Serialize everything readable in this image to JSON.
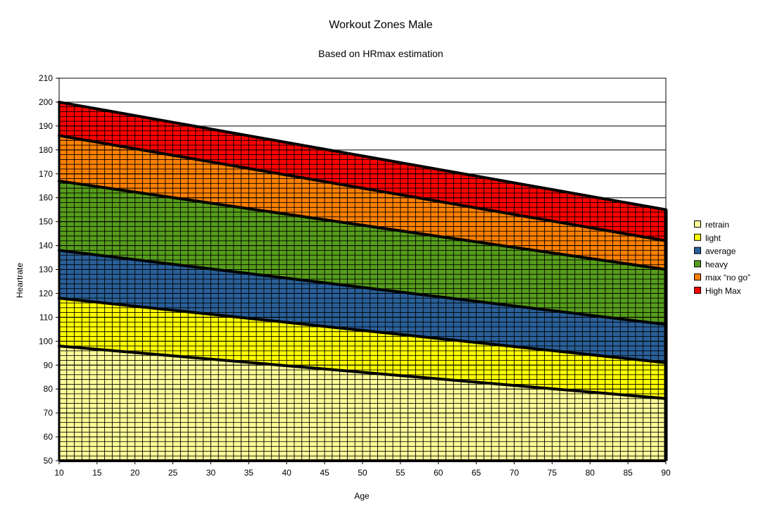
{
  "chart_data": {
    "type": "area",
    "stacked": true,
    "title": "Workout Zones Male",
    "subtitle": "Based on HRmax estimation",
    "xlabel": "Age",
    "ylabel": "Heartrate",
    "xlim": [
      10,
      90
    ],
    "ylim": [
      50,
      210
    ],
    "x_ticks": [
      10,
      15,
      20,
      25,
      30,
      35,
      40,
      45,
      50,
      55,
      60,
      65,
      70,
      75,
      80,
      85,
      90
    ],
    "y_ticks": [
      50,
      60,
      70,
      80,
      90,
      100,
      110,
      120,
      130,
      140,
      150,
      160,
      170,
      180,
      190,
      200,
      210
    ],
    "grid": true,
    "legend_position": "right",
    "series": [
      {
        "name": "retrain",
        "color": "#ffff99",
        "x": [
          10,
          90
        ],
        "lower": [
          50,
          50
        ],
        "upper": [
          98,
          76
        ]
      },
      {
        "name": "light",
        "color": "#ffff00",
        "x": [
          10,
          90
        ],
        "lower": [
          98,
          76
        ],
        "upper": [
          118,
          91
        ]
      },
      {
        "name": "average",
        "color": "#2a6099",
        "x": [
          10,
          90
        ],
        "lower": [
          118,
          91
        ],
        "upper": [
          138,
          107
        ]
      },
      {
        "name": "heavy",
        "color": "#579d1c",
        "x": [
          10,
          90
        ],
        "lower": [
          138,
          107
        ],
        "upper": [
          167,
          130
        ]
      },
      {
        "name": "max “no go”",
        "color": "#ff8000",
        "x": [
          10,
          90
        ],
        "lower": [
          167,
          130
        ],
        "upper": [
          186,
          142
        ]
      },
      {
        "name": "High Max",
        "color": "#ff0000",
        "x": [
          10,
          90
        ],
        "lower": [
          186,
          142
        ],
        "upper": [
          200,
          155
        ]
      }
    ]
  }
}
